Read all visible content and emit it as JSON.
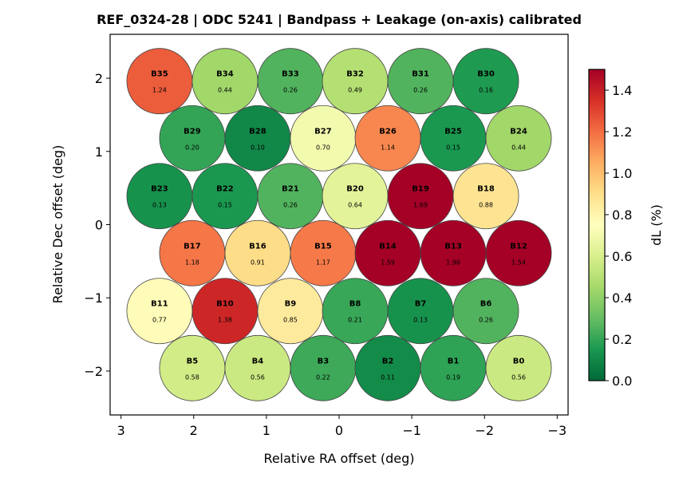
{
  "chart_data": {
    "type": "scatter",
    "subtype": "beam-footprint",
    "title": "REF_0324-28  |  ODC 5241  |  Bandpass + Leakage (on-axis) calibrated",
    "xlabel": "Relative RA offset (deg)",
    "ylabel": "Relative Dec offset (deg)",
    "xlim": [
      3.15,
      -3.15
    ],
    "ylim": [
      -2.6,
      2.6
    ],
    "x_inverted": true,
    "xticks": [
      3,
      2,
      1,
      0,
      -1,
      -2,
      -3
    ],
    "xtick_labels": [
      "3",
      "2",
      "1",
      "0",
      "−1",
      "−2",
      "−3"
    ],
    "yticks": [
      2,
      1,
      0,
      -1,
      -2
    ],
    "ytick_labels": [
      "2",
      "1",
      "0",
      "−1",
      "−2"
    ],
    "grid": false,
    "beam_radius_deg": 0.45,
    "colormap": "RdYlGn_r",
    "colorbar": {
      "label": "dL  (%)",
      "range": [
        0.0,
        1.5
      ],
      "ticks": [
        0.0,
        0.2,
        0.4,
        0.6,
        0.8,
        1.0,
        1.2,
        1.4
      ],
      "tick_labels": [
        "0.0",
        "0.2",
        "0.4",
        "0.6",
        "0.8",
        "1.0",
        "1.2",
        "1.4"
      ],
      "placement": "right"
    },
    "beams": [
      {
        "name": "B35",
        "ra": 2.47,
        "dec": 1.96,
        "value": 1.24,
        "label": "1.24"
      },
      {
        "name": "B34",
        "ra": 1.57,
        "dec": 1.96,
        "value": 0.44,
        "label": "0.44"
      },
      {
        "name": "B33",
        "ra": 0.67,
        "dec": 1.96,
        "value": 0.26,
        "label": "0.26"
      },
      {
        "name": "B32",
        "ra": -0.22,
        "dec": 1.96,
        "value": 0.49,
        "label": "0.49"
      },
      {
        "name": "B31",
        "ra": -1.12,
        "dec": 1.96,
        "value": 0.26,
        "label": "0.26"
      },
      {
        "name": "B30",
        "ra": -2.02,
        "dec": 1.96,
        "value": 0.16,
        "label": "0.16"
      },
      {
        "name": "B29",
        "ra": 2.02,
        "dec": 1.18,
        "value": 0.2,
        "label": "0.20"
      },
      {
        "name": "B28",
        "ra": 1.12,
        "dec": 1.18,
        "value": 0.1,
        "label": "0.10"
      },
      {
        "name": "B27",
        "ra": 0.22,
        "dec": 1.18,
        "value": 0.7,
        "label": "0.70"
      },
      {
        "name": "B26",
        "ra": -0.67,
        "dec": 1.18,
        "value": 1.14,
        "label": "1.14"
      },
      {
        "name": "B25",
        "ra": -1.57,
        "dec": 1.18,
        "value": 0.15,
        "label": "0.15"
      },
      {
        "name": "B24",
        "ra": -2.47,
        "dec": 1.18,
        "value": 0.44,
        "label": "0.44"
      },
      {
        "name": "B23",
        "ra": 2.47,
        "dec": 0.39,
        "value": 0.13,
        "label": "0.13"
      },
      {
        "name": "B22",
        "ra": 1.57,
        "dec": 0.39,
        "value": 0.15,
        "label": "0.15"
      },
      {
        "name": "B21",
        "ra": 0.67,
        "dec": 0.39,
        "value": 0.26,
        "label": "0.26"
      },
      {
        "name": "B20",
        "ra": -0.22,
        "dec": 0.39,
        "value": 0.64,
        "label": "0.64"
      },
      {
        "name": "B19",
        "ra": -1.12,
        "dec": 0.39,
        "value": 1.69,
        "label": "1.69"
      },
      {
        "name": "B18",
        "ra": -2.02,
        "dec": 0.39,
        "value": 0.88,
        "label": "0.88"
      },
      {
        "name": "B17",
        "ra": 2.02,
        "dec": -0.39,
        "value": 1.18,
        "label": "1.18"
      },
      {
        "name": "B16",
        "ra": 1.12,
        "dec": -0.39,
        "value": 0.91,
        "label": "0.91"
      },
      {
        "name": "B15",
        "ra": 0.22,
        "dec": -0.39,
        "value": 1.17,
        "label": "1.17"
      },
      {
        "name": "B14",
        "ra": -0.67,
        "dec": -0.39,
        "value": 1.59,
        "label": "1.59"
      },
      {
        "name": "B13",
        "ra": -1.57,
        "dec": -0.39,
        "value": 1.96,
        "label": "1.96"
      },
      {
        "name": "B12",
        "ra": -2.47,
        "dec": -0.39,
        "value": 1.54,
        "label": "1.54"
      },
      {
        "name": "B11",
        "ra": 2.47,
        "dec": -1.18,
        "value": 0.77,
        "label": "0.77"
      },
      {
        "name": "B10",
        "ra": 1.57,
        "dec": -1.18,
        "value": 1.38,
        "label": "1.38"
      },
      {
        "name": "B9",
        "ra": 0.67,
        "dec": -1.18,
        "value": 0.85,
        "label": "0.85"
      },
      {
        "name": "B8",
        "ra": -0.22,
        "dec": -1.18,
        "value": 0.21,
        "label": "0.21"
      },
      {
        "name": "B7",
        "ra": -1.12,
        "dec": -1.18,
        "value": 0.13,
        "label": "0.13"
      },
      {
        "name": "B6",
        "ra": -2.02,
        "dec": -1.18,
        "value": 0.26,
        "label": "0.26"
      },
      {
        "name": "B5",
        "ra": 2.02,
        "dec": -1.96,
        "value": 0.58,
        "label": "0.58"
      },
      {
        "name": "B4",
        "ra": 1.12,
        "dec": -1.96,
        "value": 0.56,
        "label": "0.56"
      },
      {
        "name": "B3",
        "ra": 0.22,
        "dec": -1.96,
        "value": 0.22,
        "label": "0.22"
      },
      {
        "name": "B2",
        "ra": -0.67,
        "dec": -1.96,
        "value": 0.11,
        "label": "0.11"
      },
      {
        "name": "B1",
        "ra": -1.57,
        "dec": -1.96,
        "value": 0.19,
        "label": "0.19"
      },
      {
        "name": "B0",
        "ra": -2.47,
        "dec": -1.96,
        "value": 0.56,
        "label": "0.56"
      }
    ]
  }
}
